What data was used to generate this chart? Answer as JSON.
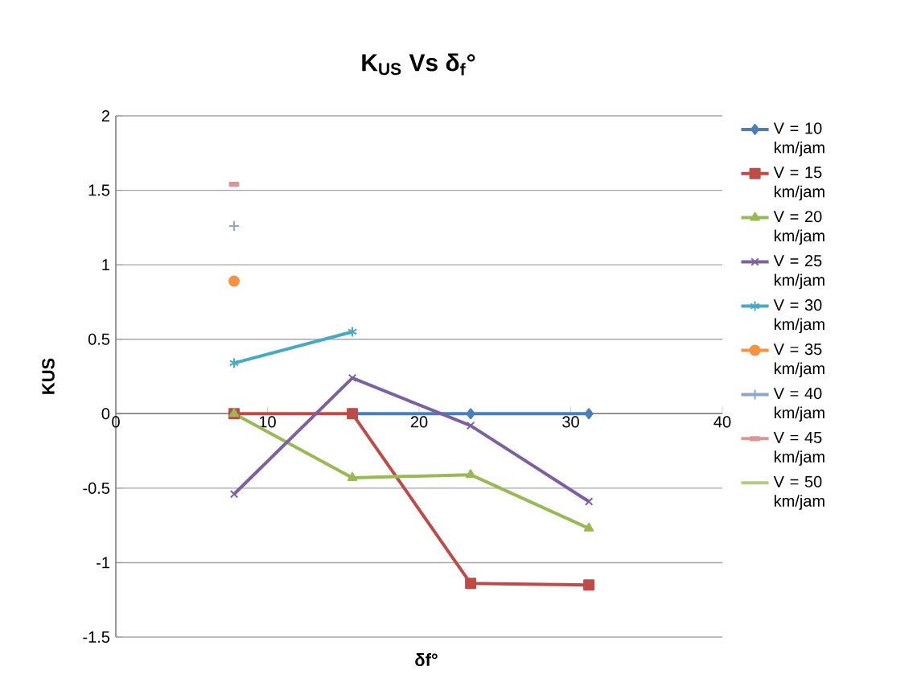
{
  "chart_data": {
    "type": "line",
    "title": "K$_{US}$ Vs δ$_{f}$°",
    "xlabel": "δf°",
    "ylabel": "KUS",
    "x": [
      7.8,
      15.6,
      23.4,
      31.2
    ],
    "xlim": [
      0,
      40
    ],
    "xticks": [
      0,
      10,
      20,
      30,
      40
    ],
    "ylim": [
      -1.5,
      2
    ],
    "yticks": [
      -1.5,
      -1,
      -0.5,
      0,
      0.5,
      1,
      1.5,
      2
    ],
    "grid": "y",
    "legend": "right",
    "line_style": "solid",
    "series": [
      {
        "name": "V = 10 km/jam",
        "color": "#4a7ebb",
        "marker": "diamond",
        "values": [
          null,
          0,
          0,
          0
        ]
      },
      {
        "name": "V = 15 km/jam",
        "color": "#be4b48",
        "marker": "square",
        "values": [
          0,
          0,
          -1.14,
          -1.15
        ]
      },
      {
        "name": "V = 20 km/jam",
        "color": "#98b954",
        "marker": "triangle",
        "values": [
          0,
          -0.43,
          -0.41,
          -0.77
        ]
      },
      {
        "name": "V = 25 km/jam",
        "color": "#7d60a0",
        "marker": "cross",
        "values": [
          -0.54,
          0.24,
          -0.08,
          -0.59
        ]
      },
      {
        "name": "V = 30 km/jam",
        "color": "#46aac5",
        "marker": "cross",
        "values": [
          0.34,
          0.55,
          null,
          null
        ]
      },
      {
        "name": "V = 35 km/jam",
        "color": "#f69240",
        "marker": "circle",
        "values": [
          0.89,
          null,
          null,
          null
        ]
      },
      {
        "name": "V = 40 km/jam",
        "color": "#8ea5cc",
        "marker": "plus",
        "values": [
          1.26,
          null,
          null,
          null
        ]
      },
      {
        "name": "V = 45 km/jam",
        "color": "#d99694",
        "marker": "square",
        "values": [
          1.54,
          null,
          null,
          null
        ]
      },
      {
        "name": "V = 50 km/jam",
        "color": "#b3cc82",
        "marker": "none",
        "values": [
          null,
          null,
          null,
          null
        ]
      }
    ]
  }
}
